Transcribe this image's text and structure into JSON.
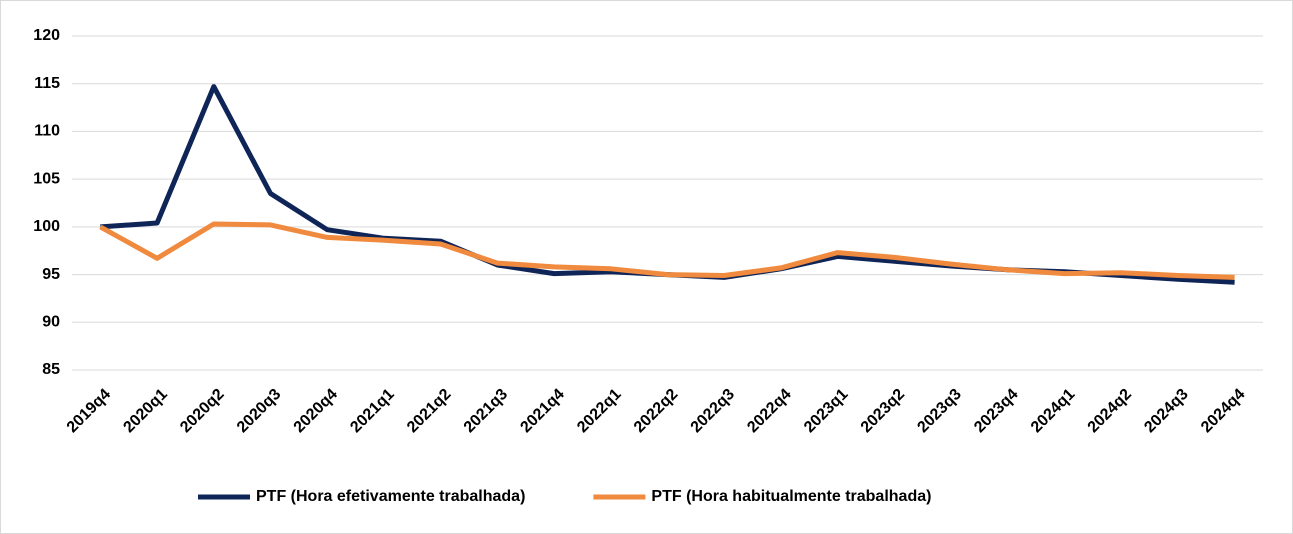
{
  "chart_data": {
    "type": "line",
    "categories": [
      "2019q4",
      "2020q1",
      "2020q2",
      "2020q3",
      "2020q4",
      "2021q1",
      "2021q2",
      "2021q3",
      "2021q4",
      "2022q1",
      "2022q2",
      "2022q3",
      "2022q4",
      "2023q1",
      "2023q2",
      "2023q3",
      "2023q4",
      "2024q1",
      "2024q2",
      "2024q3",
      "2024q4"
    ],
    "series": [
      {
        "name": "PTF (Hora efetivamente trabalhada)",
        "color": "#0f2557",
        "values": [
          100,
          100.4,
          114.7,
          103.5,
          99.7,
          98.8,
          98.5,
          96.0,
          95.1,
          95.3,
          95.0,
          94.7,
          95.6,
          96.9,
          96.4,
          95.9,
          95.5,
          95.3,
          94.9,
          94.5,
          94.2
        ]
      },
      {
        "name": "PTF (Hora habitualmente trabalhada)",
        "color": "#f08a3e",
        "values": [
          100,
          96.7,
          100.3,
          100.2,
          98.9,
          98.6,
          98.2,
          96.2,
          95.8,
          95.6,
          95.0,
          94.9,
          95.7,
          97.3,
          96.8,
          96.1,
          95.5,
          95.1,
          95.2,
          94.9,
          94.7
        ]
      }
    ],
    "ylim": [
      85,
      120
    ],
    "yticks": [
      85,
      90,
      95,
      100,
      105,
      110,
      115,
      120
    ],
    "grid": true,
    "legend": "bottom"
  }
}
